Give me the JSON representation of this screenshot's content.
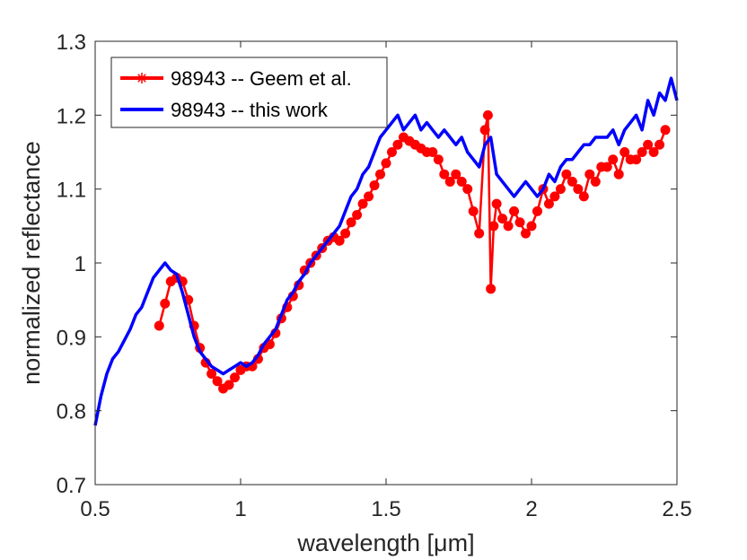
{
  "chart_data": {
    "type": "line",
    "title": "",
    "xlabel": "wavelength [μm]",
    "ylabel": "normalized reflectance",
    "xlim": [
      0.5,
      2.5
    ],
    "ylim": [
      0.7,
      1.3
    ],
    "xticks": [
      0.5,
      1,
      1.5,
      2,
      2.5
    ],
    "xtick_labels": [
      "0.5",
      "1",
      "1.5",
      "2",
      "2.5"
    ],
    "yticks": [
      0.7,
      0.8,
      0.9,
      1.0,
      1.1,
      1.2,
      1.3
    ],
    "ytick_labels": [
      "0.7",
      "0.8",
      "0.9",
      "1",
      "1.1",
      "1.2",
      "1.3"
    ],
    "grid": false,
    "legend_position": "top-left",
    "series": [
      {
        "name": "98943 -- Geem et al.",
        "color": "#ff0000",
        "marker": "asterisk",
        "x": [
          0.72,
          0.74,
          0.76,
          0.78,
          0.8,
          0.82,
          0.84,
          0.86,
          0.88,
          0.9,
          0.92,
          0.94,
          0.96,
          0.98,
          1.0,
          1.02,
          1.04,
          1.06,
          1.08,
          1.1,
          1.12,
          1.14,
          1.16,
          1.18,
          1.2,
          1.22,
          1.24,
          1.26,
          1.28,
          1.3,
          1.32,
          1.34,
          1.36,
          1.38,
          1.4,
          1.42,
          1.44,
          1.46,
          1.48,
          1.5,
          1.52,
          1.54,
          1.56,
          1.58,
          1.6,
          1.62,
          1.64,
          1.66,
          1.68,
          1.7,
          1.72,
          1.74,
          1.76,
          1.78,
          1.8,
          1.82,
          1.84,
          1.85,
          1.86,
          1.87,
          1.88,
          1.9,
          1.92,
          1.94,
          1.96,
          1.98,
          2.0,
          2.02,
          2.04,
          2.06,
          2.08,
          2.1,
          2.12,
          2.14,
          2.16,
          2.18,
          2.2,
          2.22,
          2.24,
          2.26,
          2.28,
          2.3,
          2.32,
          2.34,
          2.36,
          2.38,
          2.4,
          2.42,
          2.44,
          2.46
        ],
        "values": [
          0.915,
          0.945,
          0.975,
          0.98,
          0.975,
          0.95,
          0.915,
          0.885,
          0.865,
          0.85,
          0.84,
          0.83,
          0.835,
          0.845,
          0.855,
          0.86,
          0.86,
          0.87,
          0.885,
          0.89,
          0.905,
          0.925,
          0.94,
          0.955,
          0.97,
          0.99,
          1.0,
          1.01,
          1.02,
          1.03,
          1.035,
          1.03,
          1.04,
          1.055,
          1.065,
          1.08,
          1.09,
          1.105,
          1.12,
          1.135,
          1.15,
          1.16,
          1.17,
          1.165,
          1.16,
          1.155,
          1.15,
          1.15,
          1.14,
          1.12,
          1.11,
          1.12,
          1.11,
          1.1,
          1.07,
          1.04,
          1.18,
          1.2,
          0.965,
          1.05,
          1.08,
          1.06,
          1.05,
          1.07,
          1.055,
          1.04,
          1.05,
          1.07,
          1.1,
          1.08,
          1.09,
          1.1,
          1.12,
          1.11,
          1.1,
          1.09,
          1.12,
          1.11,
          1.13,
          1.13,
          1.14,
          1.12,
          1.15,
          1.14,
          1.14,
          1.15,
          1.16,
          1.15,
          1.16,
          1.18
        ]
      },
      {
        "name": "98943 -- this work",
        "color": "#0000ff",
        "marker": "none",
        "x": [
          0.5,
          0.52,
          0.54,
          0.56,
          0.58,
          0.6,
          0.62,
          0.64,
          0.66,
          0.68,
          0.7,
          0.72,
          0.74,
          0.76,
          0.78,
          0.8,
          0.82,
          0.84,
          0.86,
          0.88,
          0.9,
          0.92,
          0.94,
          0.96,
          0.98,
          1.0,
          1.02,
          1.04,
          1.06,
          1.08,
          1.1,
          1.12,
          1.14,
          1.16,
          1.18,
          1.2,
          1.22,
          1.24,
          1.26,
          1.28,
          1.3,
          1.32,
          1.34,
          1.36,
          1.38,
          1.4,
          1.42,
          1.44,
          1.46,
          1.48,
          1.5,
          1.52,
          1.54,
          1.56,
          1.58,
          1.6,
          1.62,
          1.64,
          1.66,
          1.68,
          1.7,
          1.72,
          1.74,
          1.76,
          1.78,
          1.8,
          1.82,
          1.84,
          1.86,
          1.88,
          1.9,
          1.92,
          1.94,
          1.96,
          1.98,
          2.0,
          2.02,
          2.04,
          2.06,
          2.08,
          2.1,
          2.12,
          2.14,
          2.16,
          2.18,
          2.2,
          2.22,
          2.24,
          2.26,
          2.28,
          2.3,
          2.32,
          2.34,
          2.36,
          2.38,
          2.4,
          2.42,
          2.44,
          2.46,
          2.48,
          2.5
        ],
        "values": [
          0.78,
          0.82,
          0.85,
          0.87,
          0.88,
          0.895,
          0.91,
          0.93,
          0.94,
          0.96,
          0.98,
          0.99,
          1.0,
          0.99,
          0.985,
          0.96,
          0.93,
          0.9,
          0.88,
          0.87,
          0.86,
          0.855,
          0.85,
          0.855,
          0.86,
          0.865,
          0.86,
          0.865,
          0.875,
          0.89,
          0.9,
          0.91,
          0.93,
          0.95,
          0.96,
          0.975,
          0.985,
          1.0,
          1.01,
          1.02,
          1.03,
          1.04,
          1.05,
          1.07,
          1.09,
          1.1,
          1.12,
          1.13,
          1.15,
          1.17,
          1.18,
          1.19,
          1.2,
          1.18,
          1.19,
          1.2,
          1.18,
          1.19,
          1.18,
          1.17,
          1.18,
          1.17,
          1.16,
          1.17,
          1.15,
          1.14,
          1.13,
          1.16,
          1.17,
          1.12,
          1.11,
          1.1,
          1.09,
          1.1,
          1.11,
          1.1,
          1.09,
          1.1,
          1.12,
          1.11,
          1.13,
          1.14,
          1.14,
          1.15,
          1.16,
          1.16,
          1.17,
          1.17,
          1.17,
          1.18,
          1.16,
          1.18,
          1.19,
          1.2,
          1.18,
          1.22,
          1.2,
          1.23,
          1.22,
          1.25,
          1.22
        ]
      }
    ]
  }
}
